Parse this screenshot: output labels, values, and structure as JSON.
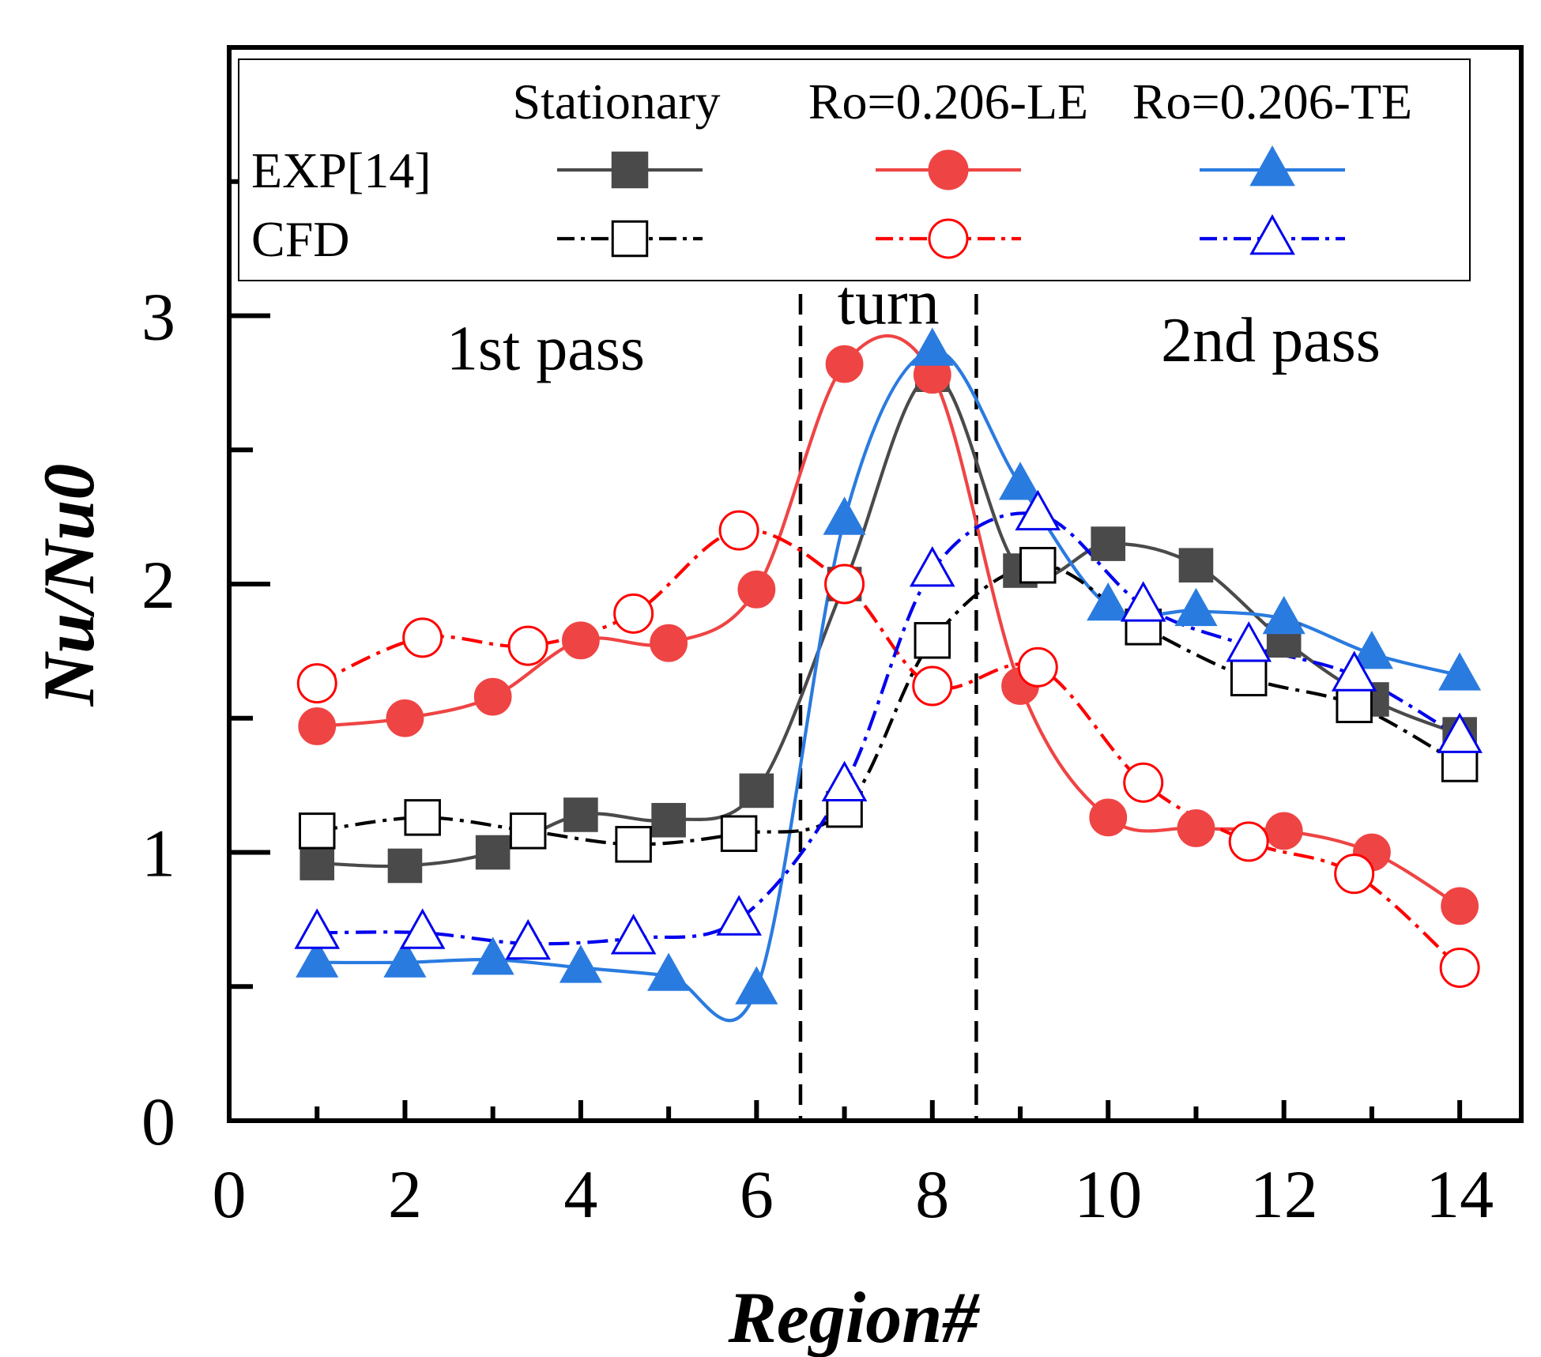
{
  "chart_data": {
    "type": "line",
    "xlabel": "Region#",
    "ylabel": "Nu/Nu0",
    "xlim": [
      0,
      14.7
    ],
    "ylim": [
      0,
      4.0
    ],
    "xticks": [
      0,
      2,
      4,
      6,
      8,
      10,
      12,
      14
    ],
    "yticks": [
      0,
      1,
      2,
      3
    ],
    "xtick_labels": [
      "0",
      "2",
      "4",
      "6",
      "8",
      "10",
      "12",
      "14"
    ],
    "ytick_labels": [
      "0",
      "1",
      "2",
      "3"
    ],
    "divider_lines_x": [
      6.5,
      8.5
    ],
    "annotations": [
      {
        "text": "1st pass",
        "x": 3.6,
        "y": 2.8
      },
      {
        "text": "turn",
        "x": 7.5,
        "y": 2.97
      },
      {
        "text": "2nd pass",
        "x": 11.85,
        "y": 2.83
      }
    ],
    "legend": {
      "columns": [
        "Stationary",
        "Ro=0.206-LE",
        "Ro=0.206-TE"
      ],
      "rows": [
        "EXP[14]",
        "CFD"
      ]
    },
    "series": [
      {
        "name": "EXP[14] Stationary",
        "color": "#4a4a4a",
        "dash": "solid",
        "marker": "square",
        "filled": true,
        "x": [
          1,
          2,
          3,
          4,
          5,
          6,
          7,
          8,
          9,
          10,
          11,
          12,
          13,
          14
        ],
        "values": [
          0.96,
          0.95,
          1.0,
          1.14,
          1.12,
          1.23,
          2.0,
          2.78,
          2.05,
          2.15,
          2.07,
          1.79,
          1.57,
          1.44
        ]
      },
      {
        "name": "EXP[14] Ro=0.206-LE",
        "color": "#ef4444",
        "dash": "solid",
        "marker": "circle",
        "filled": true,
        "x": [
          1,
          2,
          3,
          4,
          5,
          6,
          7,
          8,
          9,
          10,
          11,
          12,
          13,
          14
        ],
        "values": [
          1.47,
          1.5,
          1.58,
          1.79,
          1.78,
          1.98,
          2.82,
          2.78,
          1.62,
          1.13,
          1.09,
          1.08,
          1.0,
          0.8
        ]
      },
      {
        "name": "EXP[14] Ro=0.206-TE",
        "color": "#2a7be0",
        "dash": "solid",
        "marker": "triangle",
        "filled": true,
        "x": [
          1,
          2,
          3,
          4,
          5,
          6,
          7,
          8,
          9,
          10,
          11,
          12,
          13,
          14
        ],
        "values": [
          0.59,
          0.59,
          0.6,
          0.57,
          0.54,
          0.49,
          2.24,
          2.87,
          2.37,
          1.92,
          1.9,
          1.87,
          1.74,
          1.66
        ]
      },
      {
        "name": "CFD Stationary",
        "color": "#000000",
        "dash": "dashdot",
        "marker": "square",
        "filled": false,
        "x": [
          1,
          2.2,
          3.4,
          4.6,
          5.8,
          7,
          8,
          9.2,
          10.4,
          11.6,
          12.8,
          14
        ],
        "values": [
          1.08,
          1.13,
          1.08,
          1.03,
          1.07,
          1.16,
          1.79,
          2.07,
          1.84,
          1.65,
          1.55,
          1.33
        ]
      },
      {
        "name": "CFD Ro=0.206-LE",
        "color": "#ff0000",
        "dash": "dashdot",
        "marker": "circle",
        "filled": false,
        "x": [
          1,
          2.2,
          3.4,
          4.6,
          5.8,
          7,
          8,
          9.2,
          10.4,
          11.6,
          12.8,
          14
        ],
        "values": [
          1.63,
          1.8,
          1.77,
          1.89,
          2.2,
          2.0,
          1.62,
          1.69,
          1.26,
          1.04,
          0.92,
          0.57
        ]
      },
      {
        "name": "CFD Ro=0.206-TE",
        "color": "#0000ee",
        "dash": "dashdot",
        "marker": "triangle",
        "filled": false,
        "x": [
          1,
          2.2,
          3.4,
          4.6,
          5.8,
          7,
          8,
          9.2,
          10.4,
          11.6,
          12.8,
          14
        ],
        "values": [
          0.7,
          0.7,
          0.66,
          0.68,
          0.75,
          1.25,
          2.05,
          2.26,
          1.92,
          1.77,
          1.66,
          1.43
        ]
      }
    ]
  }
}
